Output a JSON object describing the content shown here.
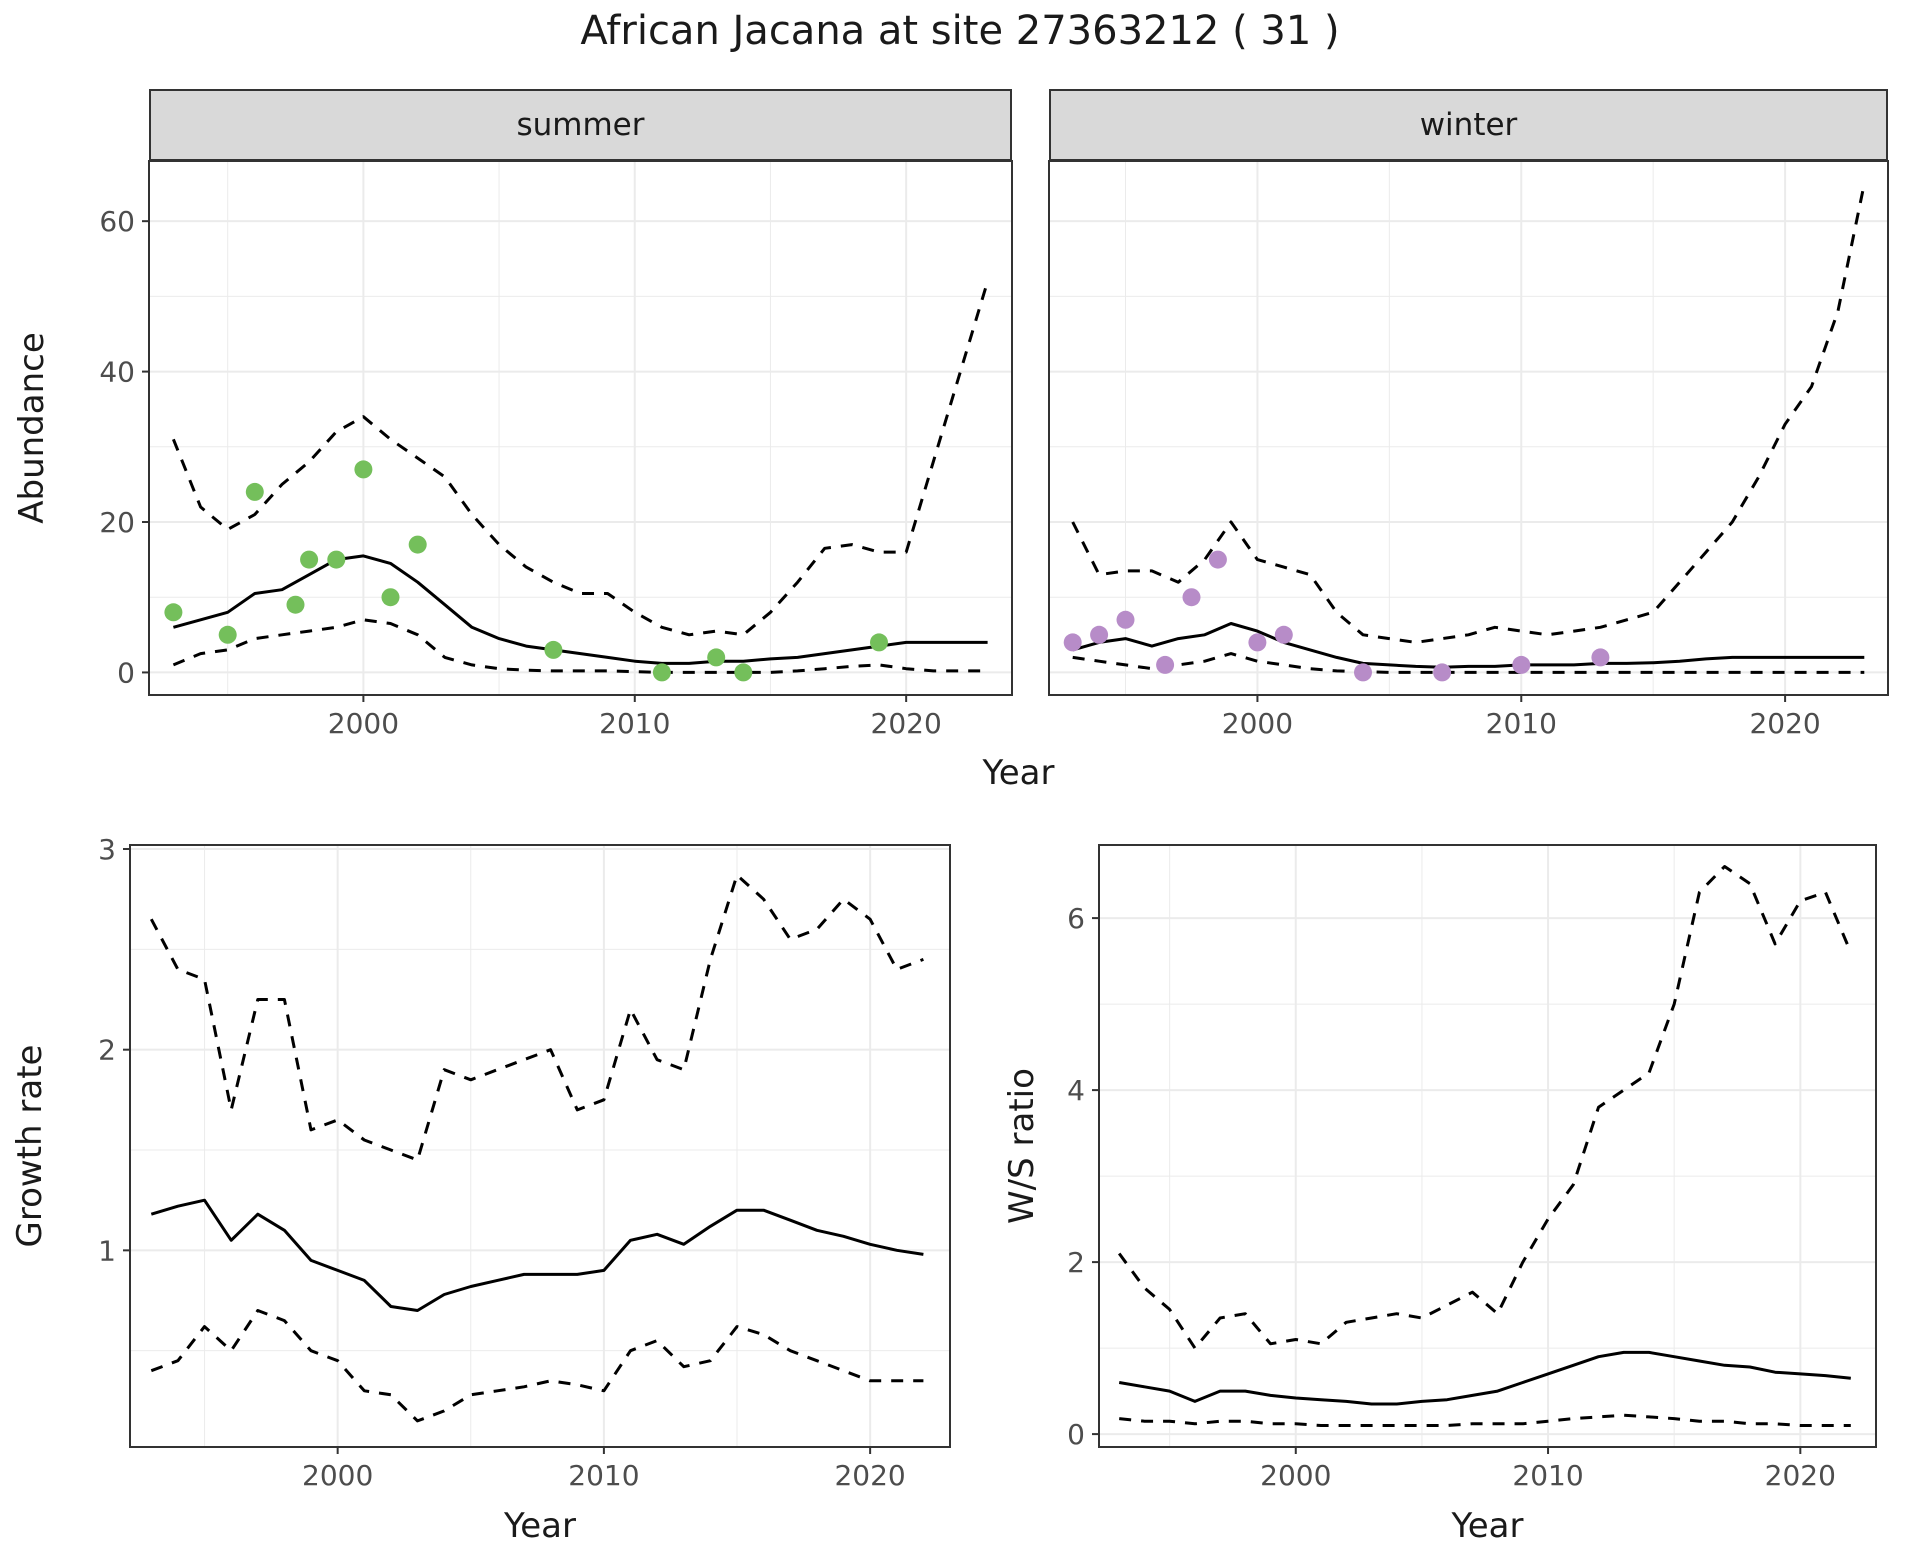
{
  "title": "African Jacana at site 27363212 ( 31 )",
  "colors": {
    "line": "#000000",
    "border": "#333333",
    "grid": "#ebebeb",
    "tick_text": "#4d4d4d",
    "strip_bg": "#d9d9d9",
    "summer_points": "#74bf5b",
    "winter_points": "#b78cc8"
  },
  "chart_data": [
    {
      "id": "abundance-summer",
      "type": "line",
      "facet_label": "summer",
      "xlabel": "Year",
      "ylabel": "Abundance",
      "xlim": [
        1992.1,
        2023.9
      ],
      "ylim": [
        -3,
        68
      ],
      "xticks": [
        2000,
        2010,
        2020
      ],
      "yticks": [
        0,
        20,
        40,
        60
      ],
      "show_y_labels": true,
      "series": [
        {
          "name": "upper-ci",
          "style": "dashed",
          "x": [
            1993,
            1994,
            1995,
            1996,
            1997,
            1998,
            1999,
            2000,
            2001,
            2002,
            2003,
            2004,
            2005,
            2006,
            2007,
            2008,
            2009,
            2010,
            2011,
            2012,
            2013,
            2014,
            2015,
            2016,
            2017,
            2018,
            2019,
            2020,
            2021,
            2022,
            2023
          ],
          "y": [
            31,
            22,
            19,
            21,
            25,
            28,
            32,
            34,
            31,
            28.5,
            26,
            21,
            17,
            14,
            12,
            10.5,
            10.5,
            8,
            6,
            5,
            5.5,
            5,
            8,
            12,
            16.5,
            17,
            16,
            16,
            28,
            40,
            52
          ]
        },
        {
          "name": "lower-ci",
          "style": "dashed",
          "x": [
            1993,
            1994,
            1995,
            1996,
            1997,
            1998,
            1999,
            2000,
            2001,
            2002,
            2003,
            2004,
            2005,
            2006,
            2007,
            2008,
            2009,
            2010,
            2011,
            2012,
            2013,
            2014,
            2015,
            2016,
            2017,
            2018,
            2019,
            2020,
            2021,
            2022,
            2023
          ],
          "y": [
            1,
            2.5,
            3,
            4.5,
            5,
            5.5,
            6,
            7,
            6.5,
            5,
            2,
            1,
            0.5,
            0.3,
            0.2,
            0.2,
            0.2,
            0.1,
            0,
            0,
            0,
            0,
            0,
            0.2,
            0.5,
            0.8,
            1,
            0.5,
            0.2,
            0.2,
            0.2
          ]
        },
        {
          "name": "mean",
          "style": "solid",
          "x": [
            1993,
            1994,
            1995,
            1996,
            1997,
            1998,
            1999,
            2000,
            2001,
            2002,
            2003,
            2004,
            2005,
            2006,
            2007,
            2008,
            2009,
            2010,
            2011,
            2012,
            2013,
            2014,
            2015,
            2016,
            2017,
            2018,
            2019,
            2020,
            2021,
            2022,
            2023
          ],
          "y": [
            6,
            7,
            8,
            10.5,
            11,
            13,
            15,
            15.5,
            14.5,
            12,
            9,
            6,
            4.5,
            3.5,
            3,
            2.5,
            2,
            1.5,
            1.2,
            1.2,
            1.5,
            1.5,
            1.8,
            2,
            2.5,
            3,
            3.5,
            4,
            4,
            4,
            4
          ]
        },
        {
          "name": "observed-counts",
          "style": "points",
          "color": "#74bf5b",
          "x": [
            1993,
            1995,
            1996,
            1997.5,
            1998,
            1999,
            2000,
            2001,
            2002,
            2007,
            2011,
            2013,
            2014,
            2019
          ],
          "y": [
            8,
            5,
            24,
            9,
            15,
            15,
            27,
            10,
            17,
            3,
            0,
            2,
            0,
            4
          ]
        }
      ]
    },
    {
      "id": "abundance-winter",
      "type": "line",
      "facet_label": "winter",
      "xlabel": "Year",
      "ylabel": "Abundance",
      "xlim": [
        1992.1,
        2023.9
      ],
      "ylim": [
        -3,
        68
      ],
      "xticks": [
        2000,
        2010,
        2020
      ],
      "yticks": [
        0,
        20,
        40,
        60
      ],
      "show_y_labels": false,
      "series": [
        {
          "name": "upper-ci",
          "style": "dashed",
          "x": [
            1993,
            1994,
            1995,
            1996,
            1997,
            1998,
            1999,
            2000,
            2001,
            2002,
            2003,
            2004,
            2005,
            2006,
            2007,
            2008,
            2009,
            2010,
            2011,
            2012,
            2013,
            2014,
            2015,
            2016,
            2017,
            2018,
            2019,
            2020,
            2021,
            2022,
            2023
          ],
          "y": [
            20,
            13,
            13.5,
            13.5,
            12,
            15,
            20,
            15,
            14,
            13,
            8,
            5,
            4.5,
            4,
            4.5,
            5,
            6,
            5.5,
            5,
            5.5,
            6,
            7,
            8,
            12,
            16,
            20,
            26,
            33,
            38,
            48,
            65
          ]
        },
        {
          "name": "lower-ci",
          "style": "dashed",
          "x": [
            1993,
            1994,
            1995,
            1996,
            1997,
            1998,
            1999,
            2000,
            2001,
            2002,
            2003,
            2004,
            2005,
            2006,
            2007,
            2008,
            2009,
            2010,
            2011,
            2012,
            2013,
            2014,
            2015,
            2016,
            2017,
            2018,
            2019,
            2020,
            2021,
            2022,
            2023
          ],
          "y": [
            2,
            1.5,
            1,
            0.5,
            1,
            1.5,
            2.5,
            1.5,
            1,
            0.5,
            0.2,
            0.1,
            0,
            0,
            0,
            0,
            0,
            0,
            0,
            0,
            0,
            0,
            0,
            0,
            0,
            0,
            0,
            0,
            0,
            0,
            0
          ]
        },
        {
          "name": "mean",
          "style": "solid",
          "x": [
            1993,
            1994,
            1995,
            1996,
            1997,
            1998,
            1999,
            2000,
            2001,
            2002,
            2003,
            2004,
            2005,
            2006,
            2007,
            2008,
            2009,
            2010,
            2011,
            2012,
            2013,
            2014,
            2015,
            2016,
            2017,
            2018,
            2019,
            2020,
            2021,
            2022,
            2023
          ],
          "y": [
            3,
            4,
            4.5,
            3.5,
            4.5,
            5,
            6.5,
            5.5,
            4,
            3,
            2,
            1.2,
            1,
            0.8,
            0.7,
            0.8,
            0.8,
            1,
            1,
            1,
            1.2,
            1.2,
            1.3,
            1.5,
            1.8,
            2,
            2,
            2,
            2,
            2,
            2
          ]
        },
        {
          "name": "observed-counts",
          "style": "points",
          "color": "#b78cc8",
          "x": [
            1993,
            1994,
            1995,
            1996.5,
            1997.5,
            1998.5,
            2000,
            2001,
            2004,
            2007,
            2010,
            2013
          ],
          "y": [
            4,
            5,
            7,
            1,
            10,
            15,
            4,
            5,
            0,
            0,
            1,
            2
          ]
        }
      ]
    },
    {
      "id": "growth-rate",
      "type": "line",
      "xlabel": "Year",
      "ylabel": "Growth rate",
      "xlim": [
        1992.2,
        2023
      ],
      "ylim": [
        0.02,
        3.02
      ],
      "xticks": [
        2000,
        2010,
        2020
      ],
      "yticks": [
        1,
        2,
        3
      ],
      "show_y_labels": true,
      "series": [
        {
          "name": "upper-ci",
          "style": "dashed",
          "x": [
            1993,
            1994,
            1995,
            1996,
            1997,
            1998,
            1999,
            2000,
            2001,
            2002,
            2003,
            2004,
            2005,
            2006,
            2007,
            2008,
            2009,
            2010,
            2011,
            2012,
            2013,
            2014,
            2015,
            2016,
            2017,
            2018,
            2019,
            2020,
            2021,
            2022
          ],
          "y": [
            2.65,
            2.4,
            2.35,
            1.7,
            2.25,
            2.25,
            1.6,
            1.65,
            1.55,
            1.5,
            1.45,
            1.9,
            1.85,
            1.9,
            1.95,
            2.0,
            1.7,
            1.75,
            2.2,
            1.95,
            1.9,
            2.45,
            2.87,
            2.75,
            2.55,
            2.6,
            2.75,
            2.65,
            2.4,
            2.45
          ]
        },
        {
          "name": "lower-ci",
          "style": "dashed",
          "x": [
            1993,
            1994,
            1995,
            1996,
            1997,
            1998,
            1999,
            2000,
            2001,
            2002,
            2003,
            2004,
            2005,
            2006,
            2007,
            2008,
            2009,
            2010,
            2011,
            2012,
            2013,
            2014,
            2015,
            2016,
            2017,
            2018,
            2019,
            2020,
            2021,
            2022
          ],
          "y": [
            0.4,
            0.45,
            0.62,
            0.5,
            0.7,
            0.65,
            0.5,
            0.45,
            0.3,
            0.28,
            0.15,
            0.2,
            0.28,
            0.3,
            0.32,
            0.35,
            0.33,
            0.3,
            0.5,
            0.55,
            0.42,
            0.45,
            0.62,
            0.58,
            0.5,
            0.45,
            0.4,
            0.35,
            0.35,
            0.35
          ]
        },
        {
          "name": "mean",
          "style": "solid",
          "x": [
            1993,
            1994,
            1995,
            1996,
            1997,
            1998,
            1999,
            2000,
            2001,
            2002,
            2003,
            2004,
            2005,
            2006,
            2007,
            2008,
            2009,
            2010,
            2011,
            2012,
            2013,
            2014,
            2015,
            2016,
            2017,
            2018,
            2019,
            2020,
            2021,
            2022
          ],
          "y": [
            1.18,
            1.22,
            1.25,
            1.05,
            1.18,
            1.1,
            0.95,
            0.9,
            0.85,
            0.72,
            0.7,
            0.78,
            0.82,
            0.85,
            0.88,
            0.88,
            0.88,
            0.9,
            1.05,
            1.08,
            1.03,
            1.12,
            1.2,
            1.2,
            1.15,
            1.1,
            1.07,
            1.03,
            1.0,
            0.98
          ]
        }
      ]
    },
    {
      "id": "ws-ratio",
      "type": "line",
      "xlabel": "Year",
      "ylabel": "W/S ratio",
      "xlim": [
        1992.2,
        2023
      ],
      "ylim": [
        -0.15,
        6.85
      ],
      "xticks": [
        2000,
        2010,
        2020
      ],
      "yticks": [
        0,
        2,
        4,
        6
      ],
      "show_y_labels": true,
      "series": [
        {
          "name": "upper-ci",
          "style": "dashed",
          "x": [
            1993,
            1994,
            1995,
            1996,
            1997,
            1998,
            1999,
            2000,
            2001,
            2002,
            2003,
            2004,
            2005,
            2006,
            2007,
            2008,
            2009,
            2010,
            2011,
            2012,
            2013,
            2014,
            2015,
            2016,
            2017,
            2018,
            2019,
            2020,
            2021,
            2022
          ],
          "y": [
            2.1,
            1.7,
            1.45,
            1.0,
            1.35,
            1.4,
            1.05,
            1.1,
            1.05,
            1.3,
            1.35,
            1.4,
            1.35,
            1.5,
            1.65,
            1.4,
            2.0,
            2.5,
            2.9,
            3.8,
            4.0,
            4.2,
            5.0,
            6.3,
            6.6,
            6.4,
            5.7,
            6.2,
            6.3,
            5.6
          ]
        },
        {
          "name": "lower-ci",
          "style": "dashed",
          "x": [
            1993,
            1994,
            1995,
            1996,
            1997,
            1998,
            1999,
            2000,
            2001,
            2002,
            2003,
            2004,
            2005,
            2006,
            2007,
            2008,
            2009,
            2010,
            2011,
            2012,
            2013,
            2014,
            2015,
            2016,
            2017,
            2018,
            2019,
            2020,
            2021,
            2022
          ],
          "y": [
            0.18,
            0.15,
            0.15,
            0.12,
            0.15,
            0.15,
            0.12,
            0.12,
            0.1,
            0.1,
            0.1,
            0.1,
            0.1,
            0.1,
            0.12,
            0.12,
            0.12,
            0.15,
            0.18,
            0.2,
            0.22,
            0.2,
            0.18,
            0.15,
            0.15,
            0.12,
            0.12,
            0.1,
            0.1,
            0.1
          ]
        },
        {
          "name": "mean",
          "style": "solid",
          "x": [
            1993,
            1994,
            1995,
            1996,
            1997,
            1998,
            1999,
            2000,
            2001,
            2002,
            2003,
            2004,
            2005,
            2006,
            2007,
            2008,
            2009,
            2010,
            2011,
            2012,
            2013,
            2014,
            2015,
            2016,
            2017,
            2018,
            2019,
            2020,
            2021,
            2022
          ],
          "y": [
            0.6,
            0.55,
            0.5,
            0.38,
            0.5,
            0.5,
            0.45,
            0.42,
            0.4,
            0.38,
            0.35,
            0.35,
            0.38,
            0.4,
            0.45,
            0.5,
            0.6,
            0.7,
            0.8,
            0.9,
            0.95,
            0.95,
            0.9,
            0.85,
            0.8,
            0.78,
            0.72,
            0.7,
            0.68,
            0.65
          ]
        }
      ]
    }
  ]
}
